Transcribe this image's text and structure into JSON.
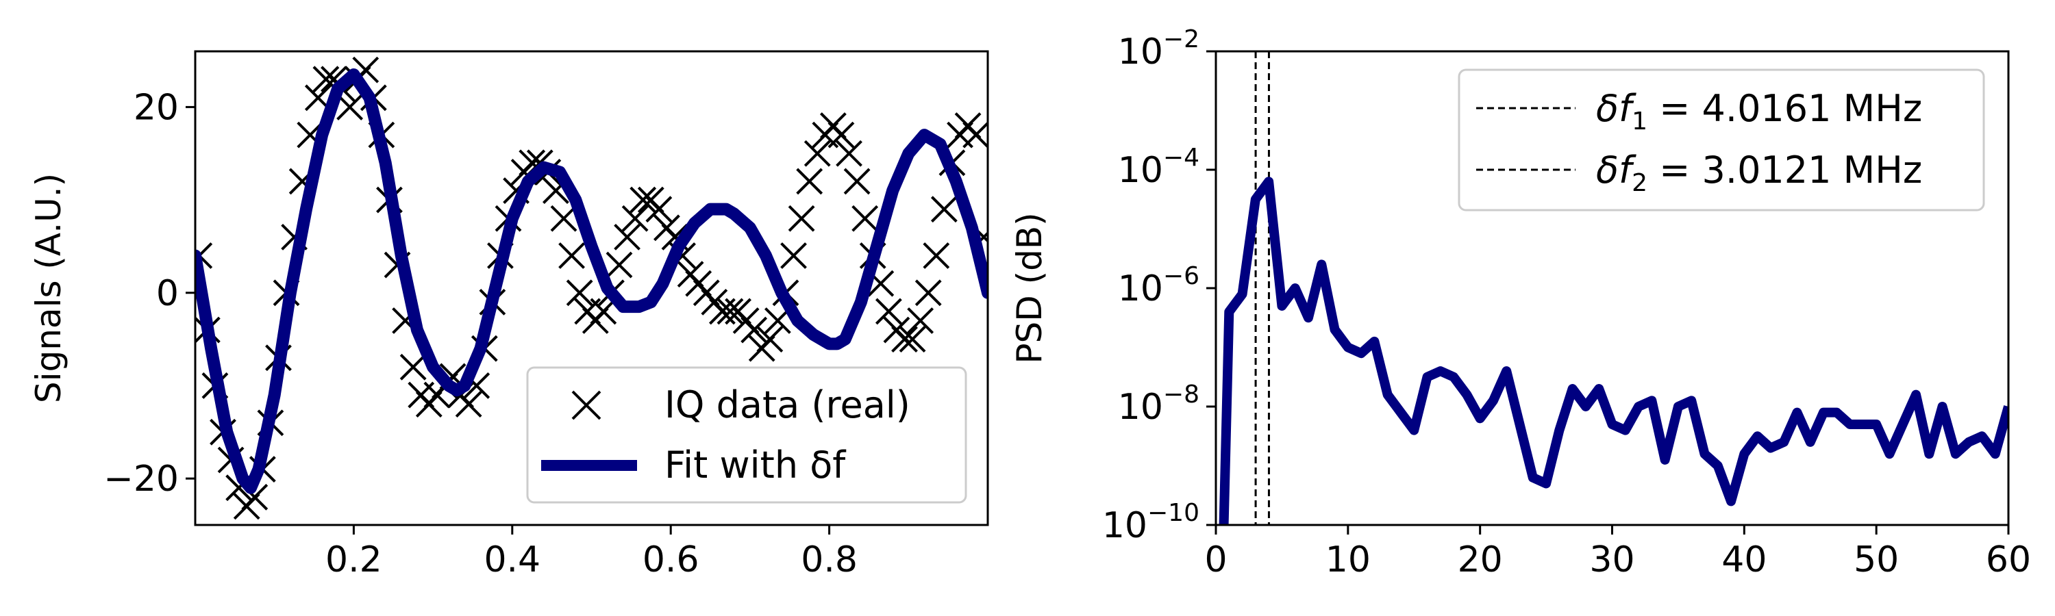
{
  "chart_data": [
    {
      "type": "line",
      "subplot": "left",
      "xlabel": "",
      "ylabel": "Signals (A.U.)",
      "xlim": [
        0.0,
        1.0
      ],
      "ylim": [
        -25,
        26
      ],
      "xticks": [
        {
          "value": 0.2,
          "label": "0.2"
        },
        {
          "value": 0.4,
          "label": "0.4"
        },
        {
          "value": 0.6,
          "label": "0.6"
        },
        {
          "value": 0.8,
          "label": "0.8"
        }
      ],
      "yticks": [
        {
          "value": -20,
          "label": "−20"
        },
        {
          "value": 0,
          "label": "0"
        },
        {
          "value": 20,
          "label": "20"
        }
      ],
      "grid": false,
      "legend_position": "lower-right",
      "series": [
        {
          "name": "IQ data (real)",
          "marker": "x",
          "color": "#000000",
          "x": [
            0.005,
            0.015,
            0.025,
            0.035,
            0.045,
            0.055,
            0.065,
            0.075,
            0.085,
            0.095,
            0.105,
            0.115,
            0.125,
            0.135,
            0.145,
            0.155,
            0.165,
            0.175,
            0.185,
            0.195,
            0.205,
            0.215,
            0.225,
            0.235,
            0.245,
            0.255,
            0.265,
            0.275,
            0.285,
            0.295,
            0.305,
            0.315,
            0.325,
            0.335,
            0.345,
            0.355,
            0.365,
            0.375,
            0.385,
            0.395,
            0.405,
            0.415,
            0.425,
            0.435,
            0.445,
            0.455,
            0.465,
            0.475,
            0.485,
            0.495,
            0.505,
            0.515,
            0.525,
            0.535,
            0.545,
            0.555,
            0.565,
            0.575,
            0.585,
            0.595,
            0.605,
            0.615,
            0.625,
            0.635,
            0.645,
            0.655,
            0.665,
            0.675,
            0.685,
            0.695,
            0.705,
            0.715,
            0.725,
            0.735,
            0.745,
            0.755,
            0.765,
            0.775,
            0.785,
            0.795,
            0.805,
            0.815,
            0.825,
            0.835,
            0.845,
            0.855,
            0.865,
            0.875,
            0.885,
            0.895,
            0.905,
            0.915,
            0.925,
            0.935,
            0.945,
            0.955,
            0.965,
            0.975,
            0.985,
            0.995
          ],
          "y": [
            4,
            -4,
            -10,
            -15,
            -18,
            -21,
            -23,
            -22,
            -19,
            -14,
            -7,
            0,
            6,
            12,
            17,
            21,
            23,
            23,
            22,
            20,
            23,
            24,
            21,
            17,
            10,
            3,
            -3,
            -8,
            -11,
            -12,
            -11,
            -10,
            -9,
            -11,
            -12,
            -10,
            -6,
            -1,
            4,
            8,
            11,
            13,
            14,
            14,
            13,
            11,
            8,
            4,
            0,
            -2,
            -3,
            -2,
            0,
            3,
            6,
            8,
            10,
            10,
            9,
            7,
            6,
            4,
            2,
            1,
            0,
            -1,
            -2,
            -2,
            -2,
            -3,
            -4,
            -6,
            -5,
            -3,
            0,
            4,
            8,
            12,
            15,
            17,
            18,
            17,
            15,
            12,
            8,
            4,
            1,
            -2,
            -4,
            -5,
            -5,
            -3,
            0,
            4,
            9,
            14,
            17,
            18,
            17,
            6
          ]
        },
        {
          "name": "Fit with δf",
          "marker": "none",
          "color": "#000080",
          "x": [
            0.0,
            0.02,
            0.04,
            0.06,
            0.07,
            0.08,
            0.1,
            0.12,
            0.14,
            0.16,
            0.18,
            0.2,
            0.22,
            0.24,
            0.26,
            0.28,
            0.3,
            0.32,
            0.33,
            0.34,
            0.36,
            0.38,
            0.4,
            0.42,
            0.44,
            0.46,
            0.48,
            0.5,
            0.52,
            0.54,
            0.56,
            0.575,
            0.59,
            0.61,
            0.63,
            0.65,
            0.67,
            0.68,
            0.7,
            0.72,
            0.74,
            0.76,
            0.78,
            0.8,
            0.81,
            0.82,
            0.84,
            0.86,
            0.88,
            0.9,
            0.92,
            0.94,
            0.96,
            0.98,
            1.0
          ],
          "y": [
            4,
            -6,
            -15,
            -20,
            -21,
            -19,
            -11,
            0,
            9,
            17,
            22,
            23.5,
            21,
            14,
            4,
            -4,
            -8,
            -10,
            -10.5,
            -10,
            -6,
            1,
            8,
            12,
            13.5,
            13,
            10,
            5,
            0.5,
            -1.5,
            -1.5,
            -1,
            1,
            5,
            7.5,
            9,
            9,
            8.5,
            7,
            4,
            0,
            -3,
            -4.5,
            -5.5,
            -5.5,
            -5,
            -1,
            5,
            11,
            15,
            17,
            16,
            12,
            7,
            0
          ]
        }
      ]
    },
    {
      "type": "line",
      "subplot": "right",
      "xlabel": "",
      "ylabel": "PSD (dB)",
      "xlim": [
        0,
        60
      ],
      "ylim_log10": [
        -10,
        -2
      ],
      "yscale": "log",
      "xticks": [
        {
          "value": 0,
          "label": "0"
        },
        {
          "value": 10,
          "label": "10"
        },
        {
          "value": 20,
          "label": "20"
        },
        {
          "value": 30,
          "label": "30"
        },
        {
          "value": 40,
          "label": "40"
        },
        {
          "value": 50,
          "label": "50"
        },
        {
          "value": 60,
          "label": "60"
        }
      ],
      "yticks": [
        {
          "exp": -10,
          "base": "10",
          "sup": "−10"
        },
        {
          "exp": -8,
          "base": "10",
          "sup": "−8"
        },
        {
          "exp": -6,
          "base": "10",
          "sup": "−6"
        },
        {
          "exp": -4,
          "base": "10",
          "sup": "−4"
        },
        {
          "exp": -2,
          "base": "10",
          "sup": "−2"
        }
      ],
      "grid": false,
      "legend_position": "top-right",
      "vlines": [
        {
          "x": 4.0161,
          "label_main": "δf",
          "label_sub": "1",
          "label_rest": " = 4.0161 MHz"
        },
        {
          "x": 3.0121,
          "label_main": "δf",
          "label_sub": "2",
          "label_rest": " = 3.0121 MHz"
        }
      ],
      "series": [
        {
          "name": "",
          "color": "#000080",
          "x": [
            0.6,
            1,
            2,
            3,
            4,
            5,
            6,
            7,
            8,
            9,
            10,
            11,
            12,
            13,
            14,
            15,
            16,
            17,
            18,
            19,
            20,
            21,
            22,
            23,
            24,
            25,
            26,
            27,
            28,
            29,
            30,
            31,
            32,
            33,
            34,
            35,
            36,
            37,
            38,
            39,
            40,
            41,
            42,
            43,
            44,
            45,
            46,
            47,
            48,
            49,
            50,
            51,
            52,
            53,
            54,
            55,
            56,
            57,
            58,
            59,
            60
          ],
          "log10_y": [
            -10,
            -6.4,
            -6.1,
            -4.5,
            -4.2,
            -6.3,
            -6.0,
            -6.5,
            -5.6,
            -6.7,
            -7.0,
            -7.1,
            -6.9,
            -7.8,
            -8.1,
            -8.4,
            -7.5,
            -7.4,
            -7.5,
            -7.8,
            -8.2,
            -7.9,
            -7.4,
            -8.3,
            -9.2,
            -9.3,
            -8.4,
            -7.7,
            -8.0,
            -7.7,
            -8.3,
            -8.4,
            -8.0,
            -7.9,
            -8.9,
            -8.0,
            -7.9,
            -8.8,
            -9.0,
            -9.6,
            -8.8,
            -8.5,
            -8.7,
            -8.6,
            -8.1,
            -8.6,
            -8.1,
            -8.1,
            -8.3,
            -8.3,
            -8.3,
            -8.8,
            -8.3,
            -7.8,
            -8.8,
            -8.0,
            -8.8,
            -8.6,
            -8.5,
            -8.8,
            -8.0
          ]
        }
      ]
    }
  ]
}
